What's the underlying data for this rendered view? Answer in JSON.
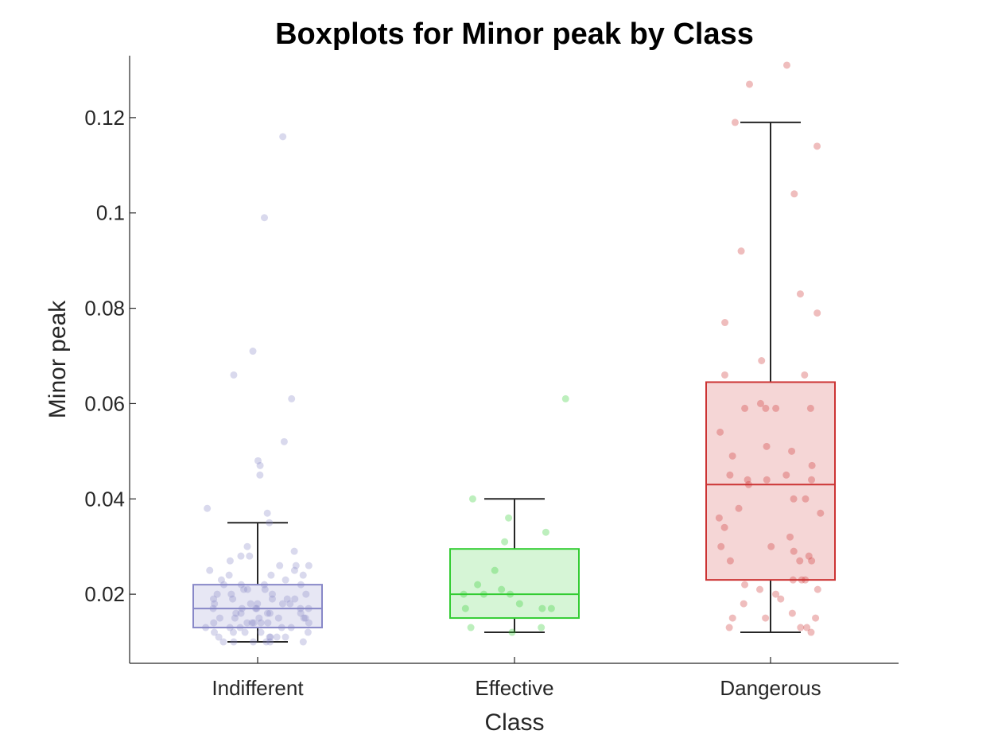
{
  "chart_data": {
    "type": "boxplot",
    "title": "Boxplots for Minor peak by Class",
    "xlabel": "Class",
    "ylabel": "Minor peak",
    "ylim": [
      0.0055,
      0.133
    ],
    "yticks": [
      0.02,
      0.04,
      0.06,
      0.08,
      0.1,
      0.12
    ],
    "ytick_labels": [
      "0.02",
      "0.04",
      "0.06",
      "0.08",
      "0.1",
      "0.12"
    ],
    "categories": [
      "Indifferent",
      "Effective",
      "Dangerous"
    ],
    "grid": false,
    "colors": {
      "Indifferent": "#8888c8",
      "Effective": "#33cc33",
      "Dangerous": "#cc3333"
    },
    "series": [
      {
        "category": "Indifferent",
        "whisker_low": 0.01,
        "q1": 0.013,
        "median": 0.017,
        "q3": 0.022,
        "whisker_high": 0.035,
        "points": [
          0.116,
          0.099,
          0.071,
          0.066,
          0.061,
          0.052,
          0.048,
          0.047,
          0.045,
          0.038,
          0.037,
          0.035,
          0.03,
          0.029,
          0.028,
          0.028,
          0.027,
          0.026,
          0.026,
          0.026,
          0.025,
          0.025,
          0.024,
          0.024,
          0.024,
          0.023,
          0.023,
          0.022,
          0.022,
          0.022,
          0.022,
          0.021,
          0.021,
          0.021,
          0.02,
          0.02,
          0.02,
          0.02,
          0.019,
          0.019,
          0.019,
          0.019,
          0.019,
          0.018,
          0.018,
          0.018,
          0.018,
          0.018,
          0.017,
          0.017,
          0.017,
          0.017,
          0.017,
          0.017,
          0.016,
          0.016,
          0.016,
          0.016,
          0.016,
          0.015,
          0.015,
          0.015,
          0.015,
          0.015,
          0.015,
          0.014,
          0.014,
          0.014,
          0.014,
          0.014,
          0.014,
          0.014,
          0.013,
          0.013,
          0.013,
          0.013,
          0.013,
          0.012,
          0.012,
          0.012,
          0.012,
          0.012,
          0.011,
          0.011,
          0.011,
          0.011,
          0.011,
          0.01,
          0.01,
          0.01,
          0.01,
          0.01,
          0.01
        ]
      },
      {
        "category": "Effective",
        "whisker_low": 0.012,
        "q1": 0.015,
        "median": 0.02,
        "q3": 0.0295,
        "whisker_high": 0.04,
        "points": [
          0.061,
          0.04,
          0.036,
          0.033,
          0.031,
          0.025,
          0.022,
          0.021,
          0.02,
          0.02,
          0.02,
          0.018,
          0.017,
          0.017,
          0.017,
          0.013,
          0.013,
          0.012
        ]
      },
      {
        "category": "Dangerous",
        "whisker_low": 0.012,
        "q1": 0.023,
        "median": 0.043,
        "q3": 0.0645,
        "whisker_high": 0.119,
        "points": [
          0.131,
          0.127,
          0.119,
          0.114,
          0.104,
          0.092,
          0.083,
          0.079,
          0.077,
          0.069,
          0.066,
          0.066,
          0.06,
          0.059,
          0.059,
          0.059,
          0.059,
          0.054,
          0.051,
          0.05,
          0.049,
          0.047,
          0.045,
          0.045,
          0.044,
          0.044,
          0.044,
          0.043,
          0.04,
          0.04,
          0.038,
          0.037,
          0.036,
          0.034,
          0.032,
          0.03,
          0.03,
          0.029,
          0.028,
          0.027,
          0.027,
          0.027,
          0.023,
          0.023,
          0.023,
          0.022,
          0.021,
          0.021,
          0.02,
          0.019,
          0.018,
          0.016,
          0.015,
          0.015,
          0.015,
          0.013,
          0.013,
          0.013,
          0.012
        ]
      }
    ]
  }
}
